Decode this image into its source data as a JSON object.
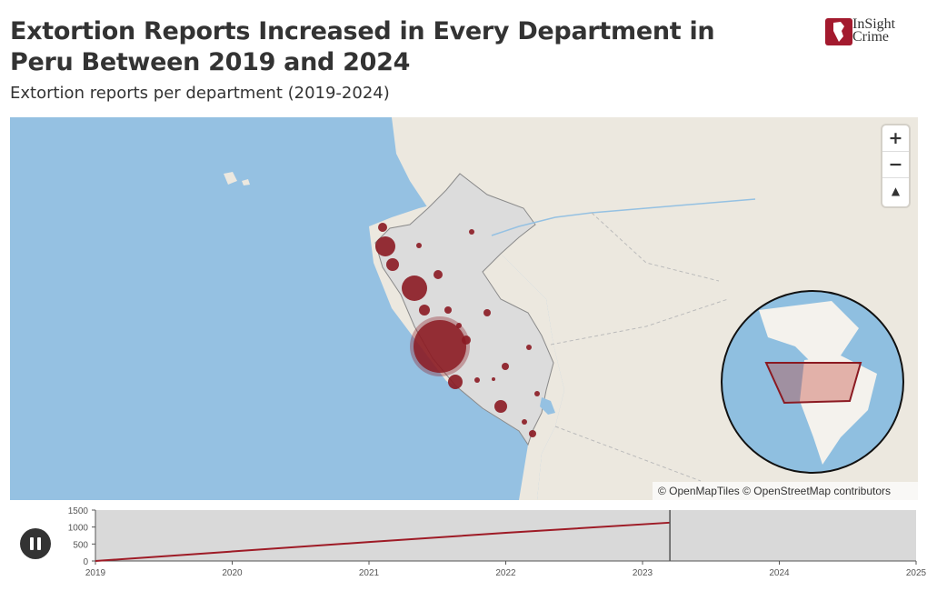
{
  "header": {
    "title": "Extortion Reports Increased in Every Department in Peru Between 2019 and 2024",
    "subtitle": "Extortion reports per department (2019-2024)",
    "logo_line1": "InSight",
    "logo_line2": "Crime",
    "brand_color": "#a31a2e"
  },
  "map": {
    "zoom_in_label": "+",
    "zoom_out_label": "−",
    "reset_north_label": "▲",
    "attribution": "© OpenMapTiles © OpenStreetMap contributors",
    "bubble_color": "#8b1a22"
  },
  "timeline": {
    "play_state": "playing",
    "y_ticks": [
      "1500",
      "1000",
      "500",
      "0"
    ],
    "x_ticks": [
      "2019",
      "2020",
      "2021",
      "2022",
      "2023",
      "2024",
      "2025"
    ],
    "line_color": "#9e1b26"
  },
  "chart_data": {
    "type": "line",
    "title": "",
    "xlabel": "",
    "ylabel": "",
    "xlim": [
      2019,
      2025
    ],
    "ylim": [
      0,
      1500
    ],
    "series": [
      {
        "values": [
          [
            2019.0,
            0
          ],
          [
            2020.0,
            280
          ],
          [
            2021.0,
            560
          ],
          [
            2022.0,
            830
          ],
          [
            2023.2,
            1130
          ]
        ]
      }
    ],
    "current_time": 2023.2
  }
}
